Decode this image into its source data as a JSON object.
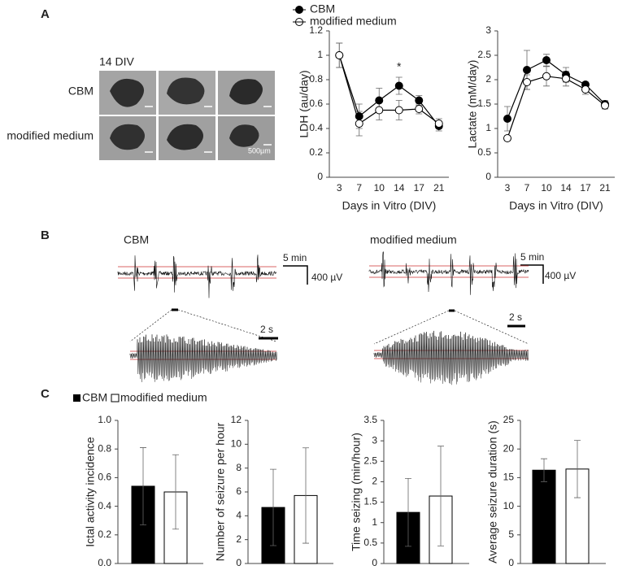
{
  "panels": {
    "a": {
      "letter": "A",
      "title": "14 DIV",
      "rows": [
        "CBM",
        "modified medium"
      ],
      "scale": "500µm"
    },
    "b": {
      "letter": "B",
      "left": "CBM",
      "right": "modified medium",
      "time_scale": [
        "5 min",
        "5 min"
      ],
      "volt_scale": [
        "400 µV",
        "400 µV"
      ],
      "zoom_scale": [
        "2 s",
        "2 s"
      ]
    },
    "c": {
      "letter": "C",
      "legend": [
        "CBM",
        "modified medium"
      ]
    }
  },
  "chart_data": [
    {
      "type": "line",
      "ylabel": "LDH (au/day)",
      "xlabel": "Days in Vitro (DIV)",
      "categories": [
        3,
        7,
        10,
        14,
        17,
        21
      ],
      "series": [
        {
          "name": "CBM",
          "color": "#000000",
          "values": [
            1.0,
            0.5,
            0.63,
            0.75,
            0.63,
            0.42
          ],
          "errors": [
            0.1,
            0.1,
            0.1,
            0.07,
            0.04,
            0.04
          ]
        },
        {
          "name": "modified medium",
          "color": "#ffffff",
          "values": [
            1.0,
            0.44,
            0.55,
            0.55,
            0.56,
            0.44
          ],
          "errors": [
            0.1,
            0.1,
            0.08,
            0.08,
            0.04,
            0.04
          ]
        }
      ],
      "ylim": [
        0,
        1.2
      ],
      "yticks": [
        0,
        0.2,
        0.4,
        0.6,
        0.8,
        1,
        1.2
      ],
      "annotation": {
        "text": "*",
        "at": 14
      }
    },
    {
      "type": "line",
      "ylabel": "Lactate (mM/day)",
      "xlabel": "Days in Vitro (DIV)",
      "categories": [
        3,
        7,
        10,
        14,
        17,
        21
      ],
      "series": [
        {
          "color": "#000000",
          "values": [
            1.2,
            2.2,
            2.4,
            2.1,
            1.9,
            1.5
          ],
          "errors": [
            0.25,
            0.4,
            0.12,
            0.15,
            0.05,
            0.07
          ]
        },
        {
          "color": "#ffffff",
          "values": [
            0.8,
            1.95,
            2.07,
            2.02,
            1.8,
            1.47
          ],
          "errors": [
            0.05,
            0.15,
            0.2,
            0.15,
            0.1,
            0.07
          ]
        }
      ],
      "ylim": [
        0,
        3
      ],
      "yticks": [
        0,
        0.5,
        1,
        1.5,
        2,
        2.5,
        3
      ]
    },
    {
      "type": "bar",
      "ylabel": "Ictal activity incidence",
      "values": [
        0.54,
        0.5
      ],
      "errors": [
        0.27,
        0.26
      ],
      "colors": [
        "#000000",
        "#ffffff"
      ],
      "ylim": [
        0,
        1
      ],
      "yticks": [
        {
          "value": 0,
          "label": "0.0"
        },
        0.2,
        0.4,
        0.6,
        0.8,
        {
          "value": 1,
          "label": "1.0"
        }
      ]
    },
    {
      "type": "bar",
      "ylabel": "Number of seizure per hour",
      "values": [
        4.7,
        5.7
      ],
      "errors": [
        3.2,
        4.0
      ],
      "colors": [
        "#000000",
        "#ffffff"
      ],
      "ylim": [
        0,
        12
      ],
      "yticks": [
        0,
        2,
        4,
        6,
        8,
        10,
        12
      ]
    },
    {
      "type": "bar",
      "ylabel": "Time seizing (min/hour)",
      "values": [
        1.25,
        1.65
      ],
      "errors": [
        0.83,
        1.22
      ],
      "colors": [
        "#000000",
        "#ffffff"
      ],
      "ylim": [
        0,
        3.5
      ],
      "yticks": [
        0,
        0.5,
        1,
        1.5,
        2,
        2.5,
        3,
        3.5
      ]
    },
    {
      "type": "bar",
      "ylabel": "Average seizure duration (s)",
      "values": [
        16.3,
        16.5
      ],
      "errors": [
        2.0,
        5.0
      ],
      "colors": [
        "#000000",
        "#ffffff"
      ],
      "ylim": [
        0,
        25
      ],
      "yticks": [
        0,
        5,
        10,
        15,
        20,
        25
      ]
    }
  ]
}
